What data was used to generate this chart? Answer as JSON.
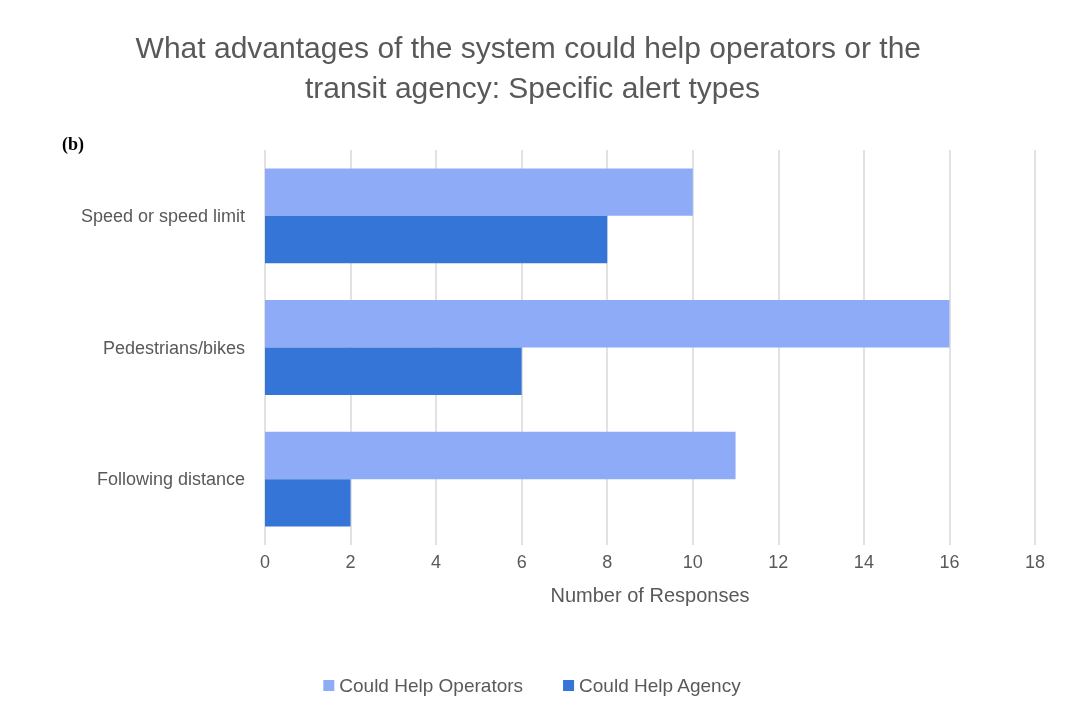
{
  "chart_data": {
    "type": "bar",
    "orientation": "horizontal",
    "title": "What advantages of the system could help operators or the transit agency: Specific alert types",
    "categories": [
      "Speed or speed limit",
      "Pedestrians/bikes",
      "Following distance"
    ],
    "series": [
      {
        "name": "Could Help Operators",
        "color": "#8eabf7",
        "values": [
          10,
          16,
          11
        ]
      },
      {
        "name": "Could Help Agency",
        "color": "#3575d8",
        "values": [
          8,
          6,
          2
        ]
      }
    ],
    "xlabel": "Number of Responses",
    "xlim": [
      0,
      18
    ],
    "xticks": [
      0,
      2,
      4,
      6,
      8,
      10,
      12,
      14,
      16,
      18
    ],
    "grid": "x",
    "legend": "bottom",
    "annotations": [
      "(b)"
    ]
  }
}
